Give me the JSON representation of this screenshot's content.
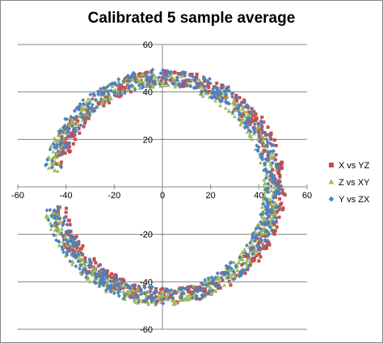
{
  "chart_data": {
    "type": "scatter",
    "title": "Calibrated 5 sample average",
    "xlabel": "",
    "ylabel": "",
    "xlim": [
      -60,
      60
    ],
    "ylim": [
      -60,
      60
    ],
    "x_ticks": [
      -60,
      -40,
      -20,
      0,
      20,
      40,
      60
    ],
    "y_ticks": [
      -60,
      -40,
      -20,
      20,
      40,
      60
    ],
    "grid": "horizontal major gridlines",
    "legend_position": "right",
    "series": [
      {
        "name": "X vs YZ",
        "color": "#C0504D",
        "marker": "square",
        "shape": "ring",
        "center": [
          0,
          0
        ],
        "radius": 46,
        "arc_gap_degrees": [
          170,
          190
        ]
      },
      {
        "name": "Z vs XY",
        "color": "#9BBB59",
        "marker": "triangle",
        "shape": "ring",
        "center": [
          0,
          0
        ],
        "radius": 46,
        "arc_gap_degrees": [
          170,
          190
        ]
      },
      {
        "name": "Y vs ZX",
        "color": "#4F81BD",
        "marker": "diamond",
        "shape": "ring",
        "center": [
          0,
          0
        ],
        "radius": 46,
        "arc_gap_degrees": [
          170,
          190
        ]
      }
    ]
  }
}
